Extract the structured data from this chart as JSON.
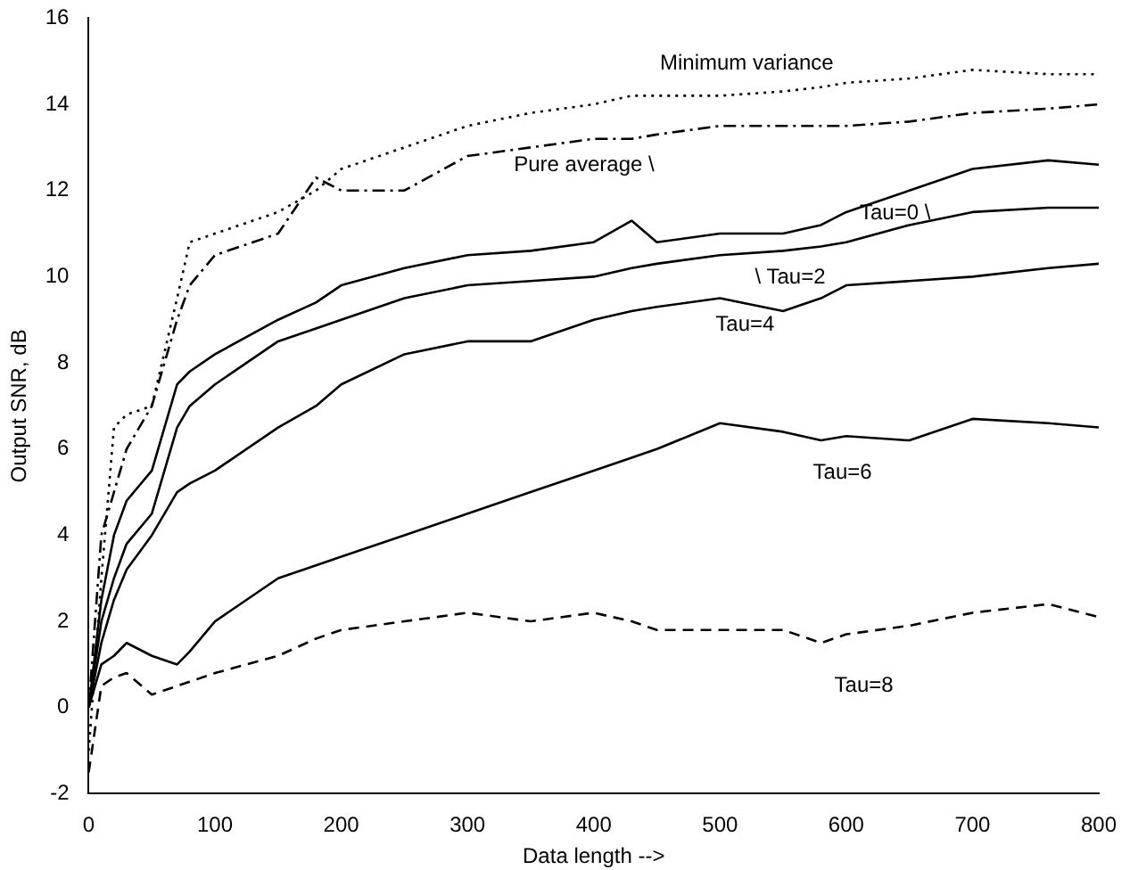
{
  "chart_data": {
    "type": "line",
    "xlabel": "Data length -->",
    "ylabel": "Output SNR, dB",
    "xlim": [
      0,
      800
    ],
    "ylim": [
      -2,
      16
    ],
    "xticks": [
      0,
      100,
      200,
      300,
      400,
      500,
      600,
      700,
      800
    ],
    "yticks": [
      -2,
      0,
      2,
      4,
      6,
      8,
      10,
      12,
      14,
      16
    ],
    "grid": false,
    "legend": false,
    "marker": "none",
    "x": [
      0,
      10,
      20,
      30,
      50,
      70,
      80,
      100,
      150,
      180,
      200,
      250,
      300,
      350,
      400,
      430,
      450,
      500,
      550,
      580,
      600,
      650,
      700,
      760,
      800
    ],
    "series": [
      {
        "name": "Minimum variance",
        "color": "#000000",
        "line_style": "dotted",
        "values": [
          -1,
          3,
          6.5,
          6.8,
          7,
          9.5,
          10.8,
          11,
          11.5,
          12,
          12.5,
          13,
          13.5,
          13.8,
          14,
          14.2,
          14.2,
          14.2,
          14.3,
          14.4,
          14.5,
          14.6,
          14.8,
          14.7,
          14.7
        ]
      },
      {
        "name": "Pure average \\",
        "color": "#000000",
        "line_style": "dashdot",
        "values": [
          0,
          4,
          5,
          6,
          7,
          9,
          9.8,
          10.5,
          11,
          12.3,
          12,
          12,
          12.8,
          13,
          13.2,
          13.2,
          13.3,
          13.5,
          13.5,
          13.5,
          13.5,
          13.6,
          13.8,
          13.9,
          14
        ]
      },
      {
        "name": "Tau=0 \\",
        "color": "#000000",
        "line_style": "solid",
        "values": [
          0,
          2.5,
          4,
          4.8,
          5.5,
          7.5,
          7.8,
          8.2,
          9,
          9.4,
          9.8,
          10.2,
          10.5,
          10.6,
          10.8,
          11.3,
          10.8,
          11,
          11,
          11.2,
          11.5,
          12,
          12.5,
          12.7,
          12.6
        ]
      },
      {
        "name": "\\ Tau=2",
        "color": "#000000",
        "line_style": "solid",
        "values": [
          0,
          2,
          3,
          3.8,
          4.5,
          6.5,
          7,
          7.5,
          8.5,
          8.8,
          9,
          9.5,
          9.8,
          9.9,
          10,
          10.2,
          10.3,
          10.5,
          10.6,
          10.7,
          10.8,
          11.2,
          11.5,
          11.6,
          11.6
        ]
      },
      {
        "name": "Tau=4",
        "color": "#000000",
        "line_style": "solid",
        "values": [
          0,
          1.5,
          2.5,
          3.2,
          4,
          5,
          5.2,
          5.5,
          6.5,
          7,
          7.5,
          8.2,
          8.5,
          8.5,
          9,
          9.2,
          9.3,
          9.5,
          9.2,
          9.5,
          9.8,
          9.9,
          10,
          10.2,
          10.3
        ]
      },
      {
        "name": "Tau=6",
        "color": "#000000",
        "line_style": "solid",
        "values": [
          0,
          1,
          1.2,
          1.5,
          1.2,
          1,
          1.3,
          2,
          3,
          3.3,
          3.5,
          4,
          4.5,
          5,
          5.5,
          5.8,
          6,
          6.6,
          6.4,
          6.2,
          6.3,
          6.2,
          6.7,
          6.6,
          6.5
        ]
      },
      {
        "name": "Tau=8",
        "color": "#000000",
        "line_style": "dashed",
        "values": [
          -1.5,
          0.5,
          0.7,
          0.8,
          0.3,
          0.5,
          0.6,
          0.8,
          1.2,
          1.6,
          1.8,
          2,
          2.2,
          2,
          2.2,
          2,
          1.8,
          1.8,
          1.8,
          1.5,
          1.7,
          1.9,
          2.2,
          2.4,
          2.1
        ]
      }
    ]
  }
}
